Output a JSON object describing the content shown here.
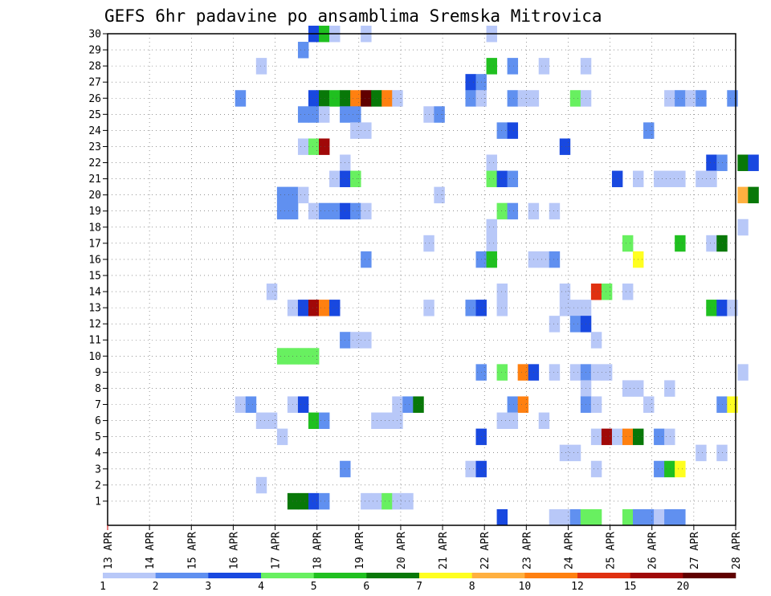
{
  "chart_data": {
    "type": "heatmap",
    "title": "GEFS 6hr padavine po ansamblima Sremska Mitrovica",
    "xlabel": "",
    "ylabel": "",
    "x_tick_labels": [
      "13 APR",
      "14 APR",
      "15 APR",
      "16 APR",
      "17 APR",
      "18 APR",
      "19 APR",
      "20 APR",
      "21 APR",
      "22 APR",
      "23 APR",
      "24 APR",
      "25 APR",
      "26 APR",
      "27 APR",
      "28 APR"
    ],
    "x_range_days": [
      13,
      28
    ],
    "y_tick_labels": [
      "1",
      "2",
      "3",
      "4",
      "5",
      "6",
      "7",
      "8",
      "9",
      "10",
      "11",
      "12",
      "13",
      "14",
      "15",
      "16",
      "17",
      "18",
      "19",
      "20",
      "21",
      "22",
      "23",
      "24",
      "25",
      "26",
      "27",
      "28",
      "29",
      "30"
    ],
    "y_range": [
      0,
      30
    ],
    "grid": true,
    "colorbar": {
      "labels": [
        "1",
        "2",
        "3",
        "4",
        "5",
        "6",
        "7",
        "8",
        "10",
        "12",
        "15",
        "20"
      ],
      "colors": [
        "#b8c8f8",
        "#6090f0",
        "#1848e0",
        "#68f060",
        "#20c020",
        "#087808",
        "#ffff20",
        "#ffb040",
        "#ff8010",
        "#e03010",
        "#a00808",
        "#600000"
      ]
    },
    "cells": [
      {
        "d": 17.92,
        "m": 30,
        "c": 3
      },
      {
        "d": 18.17,
        "m": 30,
        "c": 5
      },
      {
        "d": 18.42,
        "m": 30,
        "c": 1
      },
      {
        "d": 19.17,
        "m": 30,
        "c": 1
      },
      {
        "d": 22.17,
        "m": 30,
        "c": 1
      },
      {
        "d": 17.67,
        "m": 29,
        "c": 2
      },
      {
        "d": 16.67,
        "m": 28,
        "c": 1
      },
      {
        "d": 22.17,
        "m": 28,
        "c": 5
      },
      {
        "d": 22.67,
        "m": 28,
        "c": 2
      },
      {
        "d": 23.42,
        "m": 28,
        "c": 1
      },
      {
        "d": 24.42,
        "m": 28,
        "c": 1
      },
      {
        "d": 21.67,
        "m": 27,
        "c": 3
      },
      {
        "d": 21.92,
        "m": 27,
        "c": 2
      },
      {
        "d": 16.17,
        "m": 26,
        "c": 2
      },
      {
        "d": 17.92,
        "m": 26,
        "c": 3
      },
      {
        "d": 18.17,
        "m": 26,
        "c": 6
      },
      {
        "d": 18.42,
        "m": 26,
        "c": 5
      },
      {
        "d": 18.67,
        "m": 26,
        "c": 6
      },
      {
        "d": 18.92,
        "m": 26,
        "c": 9
      },
      {
        "d": 19.17,
        "m": 26,
        "c": 12
      },
      {
        "d": 19.42,
        "m": 26,
        "c": 6
      },
      {
        "d": 19.67,
        "m": 26,
        "c": 9
      },
      {
        "d": 19.92,
        "m": 26,
        "c": 1
      },
      {
        "d": 21.67,
        "m": 26,
        "c": 2
      },
      {
        "d": 21.92,
        "m": 26,
        "c": 1
      },
      {
        "d": 22.67,
        "m": 26,
        "c": 2
      },
      {
        "d": 22.92,
        "m": 26,
        "c": 1
      },
      {
        "d": 23.17,
        "m": 26,
        "c": 1
      },
      {
        "d": 24.17,
        "m": 26,
        "c": 4
      },
      {
        "d": 24.42,
        "m": 26,
        "c": 1
      },
      {
        "d": 26.42,
        "m": 26,
        "c": 1
      },
      {
        "d": 26.67,
        "m": 26,
        "c": 2
      },
      {
        "d": 26.92,
        "m": 26,
        "c": 1
      },
      {
        "d": 27.17,
        "m": 26,
        "c": 2
      },
      {
        "d": 27.92,
        "m": 26,
        "c": 2
      },
      {
        "d": 17.67,
        "m": 25,
        "c": 2
      },
      {
        "d": 17.92,
        "m": 25,
        "c": 2
      },
      {
        "d": 18.17,
        "m": 25,
        "c": 1
      },
      {
        "d": 18.67,
        "m": 25,
        "c": 2
      },
      {
        "d": 18.92,
        "m": 25,
        "c": 2
      },
      {
        "d": 20.67,
        "m": 25,
        "c": 1
      },
      {
        "d": 20.92,
        "m": 25,
        "c": 2
      },
      {
        "d": 18.92,
        "m": 24,
        "c": 1
      },
      {
        "d": 19.17,
        "m": 24,
        "c": 1
      },
      {
        "d": 22.42,
        "m": 24,
        "c": 2
      },
      {
        "d": 22.67,
        "m": 24,
        "c": 3
      },
      {
        "d": 25.92,
        "m": 24,
        "c": 2
      },
      {
        "d": 17.67,
        "m": 23,
        "c": 1
      },
      {
        "d": 17.92,
        "m": 23,
        "c": 4
      },
      {
        "d": 18.17,
        "m": 23,
        "c": 11
      },
      {
        "d": 23.92,
        "m": 23,
        "c": 3
      },
      {
        "d": 18.67,
        "m": 22,
        "c": 1
      },
      {
        "d": 22.17,
        "m": 22,
        "c": 1
      },
      {
        "d": 27.42,
        "m": 22,
        "c": 3
      },
      {
        "d": 27.67,
        "m": 22,
        "c": 2
      },
      {
        "d": 28.17,
        "m": 22,
        "c": 6
      },
      {
        "d": 28.42,
        "m": 22,
        "c": 3
      },
      {
        "d": 18.42,
        "m": 21,
        "c": 1
      },
      {
        "d": 18.67,
        "m": 21,
        "c": 3
      },
      {
        "d": 18.92,
        "m": 21,
        "c": 4
      },
      {
        "d": 22.17,
        "m": 21,
        "c": 4
      },
      {
        "d": 22.42,
        "m": 21,
        "c": 3
      },
      {
        "d": 22.67,
        "m": 21,
        "c": 2
      },
      {
        "d": 25.17,
        "m": 21,
        "c": 3
      },
      {
        "d": 25.67,
        "m": 21,
        "c": 1
      },
      {
        "d": 26.17,
        "m": 21,
        "c": 1
      },
      {
        "d": 26.42,
        "m": 21,
        "c": 1
      },
      {
        "d": 26.67,
        "m": 21,
        "c": 1
      },
      {
        "d": 27.17,
        "m": 21,
        "c": 1
      },
      {
        "d": 27.42,
        "m": 21,
        "c": 1
      },
      {
        "d": 17.17,
        "m": 20,
        "c": 2
      },
      {
        "d": 17.42,
        "m": 20,
        "c": 2
      },
      {
        "d": 17.67,
        "m": 20,
        "c": 1
      },
      {
        "d": 20.92,
        "m": 20,
        "c": 1
      },
      {
        "d": 28.17,
        "m": 20,
        "c": 8
      },
      {
        "d": 28.42,
        "m": 20,
        "c": 6
      },
      {
        "d": 17.17,
        "m": 19,
        "c": 2
      },
      {
        "d": 17.42,
        "m": 19,
        "c": 2
      },
      {
        "d": 17.92,
        "m": 19,
        "c": 1
      },
      {
        "d": 18.17,
        "m": 19,
        "c": 2
      },
      {
        "d": 18.42,
        "m": 19,
        "c": 2
      },
      {
        "d": 18.67,
        "m": 19,
        "c": 3
      },
      {
        "d": 18.92,
        "m": 19,
        "c": 2
      },
      {
        "d": 19.17,
        "m": 19,
        "c": 1
      },
      {
        "d": 22.42,
        "m": 19,
        "c": 4
      },
      {
        "d": 22.67,
        "m": 19,
        "c": 2
      },
      {
        "d": 23.17,
        "m": 19,
        "c": 1
      },
      {
        "d": 23.67,
        "m": 19,
        "c": 1
      },
      {
        "d": 22.17,
        "m": 18,
        "c": 1
      },
      {
        "d": 28.17,
        "m": 18,
        "c": 1
      },
      {
        "d": 20.67,
        "m": 17,
        "c": 1
      },
      {
        "d": 22.17,
        "m": 17,
        "c": 1
      },
      {
        "d": 25.42,
        "m": 17,
        "c": 4
      },
      {
        "d": 26.67,
        "m": 17,
        "c": 5
      },
      {
        "d": 27.42,
        "m": 17,
        "c": 1
      },
      {
        "d": 27.67,
        "m": 17,
        "c": 6
      },
      {
        "d": 19.17,
        "m": 16,
        "c": 2
      },
      {
        "d": 21.92,
        "m": 16,
        "c": 2
      },
      {
        "d": 22.17,
        "m": 16,
        "c": 5
      },
      {
        "d": 23.17,
        "m": 16,
        "c": 1
      },
      {
        "d": 23.42,
        "m": 16,
        "c": 1
      },
      {
        "d": 23.67,
        "m": 16,
        "c": 2
      },
      {
        "d": 25.67,
        "m": 16,
        "c": 7
      },
      {
        "d": 16.92,
        "m": 14,
        "c": 1
      },
      {
        "d": 22.42,
        "m": 14,
        "c": 1
      },
      {
        "d": 23.92,
        "m": 14,
        "c": 1
      },
      {
        "d": 24.67,
        "m": 14,
        "c": 10
      },
      {
        "d": 24.92,
        "m": 14,
        "c": 4
      },
      {
        "d": 25.42,
        "m": 14,
        "c": 1
      },
      {
        "d": 17.42,
        "m": 13,
        "c": 1
      },
      {
        "d": 17.67,
        "m": 13,
        "c": 3
      },
      {
        "d": 17.92,
        "m": 13,
        "c": 11
      },
      {
        "d": 18.17,
        "m": 13,
        "c": 9
      },
      {
        "d": 18.42,
        "m": 13,
        "c": 3
      },
      {
        "d": 20.67,
        "m": 13,
        "c": 1
      },
      {
        "d": 21.67,
        "m": 13,
        "c": 2
      },
      {
        "d": 21.92,
        "m": 13,
        "c": 3
      },
      {
        "d": 22.42,
        "m": 13,
        "c": 1
      },
      {
        "d": 23.92,
        "m": 13,
        "c": 1
      },
      {
        "d": 24.17,
        "m": 13,
        "c": 1
      },
      {
        "d": 24.42,
        "m": 13,
        "c": 1
      },
      {
        "d": 27.42,
        "m": 13,
        "c": 5
      },
      {
        "d": 27.67,
        "m": 13,
        "c": 3
      },
      {
        "d": 27.92,
        "m": 13,
        "c": 1
      },
      {
        "d": 23.67,
        "m": 12,
        "c": 1
      },
      {
        "d": 24.17,
        "m": 12,
        "c": 2
      },
      {
        "d": 24.42,
        "m": 12,
        "c": 3
      },
      {
        "d": 18.67,
        "m": 11,
        "c": 2
      },
      {
        "d": 18.92,
        "m": 11,
        "c": 1
      },
      {
        "d": 19.17,
        "m": 11,
        "c": 1
      },
      {
        "d": 24.67,
        "m": 11,
        "c": 1
      },
      {
        "d": 17.17,
        "m": 10,
        "c": 4
      },
      {
        "d": 17.42,
        "m": 10,
        "c": 4
      },
      {
        "d": 17.67,
        "m": 10,
        "c": 4
      },
      {
        "d": 17.92,
        "m": 10,
        "c": 4
      },
      {
        "d": 21.92,
        "m": 9,
        "c": 2
      },
      {
        "d": 22.42,
        "m": 9,
        "c": 4
      },
      {
        "d": 22.92,
        "m": 9,
        "c": 9
      },
      {
        "d": 23.17,
        "m": 9,
        "c": 3
      },
      {
        "d": 23.67,
        "m": 9,
        "c": 1
      },
      {
        "d": 24.17,
        "m": 9,
        "c": 1
      },
      {
        "d": 24.42,
        "m": 9,
        "c": 2
      },
      {
        "d": 24.67,
        "m": 9,
        "c": 1
      },
      {
        "d": 24.92,
        "m": 9,
        "c": 1
      },
      {
        "d": 28.17,
        "m": 9,
        "c": 1
      },
      {
        "d": 24.42,
        "m": 8,
        "c": 1
      },
      {
        "d": 25.42,
        "m": 8,
        "c": 1
      },
      {
        "d": 25.67,
        "m": 8,
        "c": 1
      },
      {
        "d": 26.42,
        "m": 8,
        "c": 1
      },
      {
        "d": 16.17,
        "m": 7,
        "c": 1
      },
      {
        "d": 16.42,
        "m": 7,
        "c": 2
      },
      {
        "d": 17.42,
        "m": 7,
        "c": 1
      },
      {
        "d": 17.67,
        "m": 7,
        "c": 3
      },
      {
        "d": 19.92,
        "m": 7,
        "c": 1
      },
      {
        "d": 20.17,
        "m": 7,
        "c": 2
      },
      {
        "d": 20.42,
        "m": 7,
        "c": 6
      },
      {
        "d": 22.67,
        "m": 7,
        "c": 2
      },
      {
        "d": 22.92,
        "m": 7,
        "c": 9
      },
      {
        "d": 24.42,
        "m": 7,
        "c": 2
      },
      {
        "d": 24.67,
        "m": 7,
        "c": 1
      },
      {
        "d": 25.92,
        "m": 7,
        "c": 1
      },
      {
        "d": 27.67,
        "m": 7,
        "c": 2
      },
      {
        "d": 27.92,
        "m": 7,
        "c": 7
      },
      {
        "d": 16.67,
        "m": 6,
        "c": 1
      },
      {
        "d": 16.92,
        "m": 6,
        "c": 1
      },
      {
        "d": 17.92,
        "m": 6,
        "c": 5
      },
      {
        "d": 18.17,
        "m": 6,
        "c": 2
      },
      {
        "d": 19.42,
        "m": 6,
        "c": 1
      },
      {
        "d": 19.67,
        "m": 6,
        "c": 1
      },
      {
        "d": 19.92,
        "m": 6,
        "c": 1
      },
      {
        "d": 22.42,
        "m": 6,
        "c": 1
      },
      {
        "d": 22.67,
        "m": 6,
        "c": 1
      },
      {
        "d": 23.42,
        "m": 6,
        "c": 1
      },
      {
        "d": 17.17,
        "m": 5,
        "c": 1
      },
      {
        "d": 21.92,
        "m": 5,
        "c": 3
      },
      {
        "d": 24.67,
        "m": 5,
        "c": 1
      },
      {
        "d": 24.92,
        "m": 5,
        "c": 11
      },
      {
        "d": 25.17,
        "m": 5,
        "c": 1
      },
      {
        "d": 25.42,
        "m": 5,
        "c": 9
      },
      {
        "d": 25.67,
        "m": 5,
        "c": 6
      },
      {
        "d": 26.17,
        "m": 5,
        "c": 2
      },
      {
        "d": 26.42,
        "m": 5,
        "c": 1
      },
      {
        "d": 23.92,
        "m": 4,
        "c": 1
      },
      {
        "d": 24.17,
        "m": 4,
        "c": 1
      },
      {
        "d": 27.17,
        "m": 4,
        "c": 1
      },
      {
        "d": 27.67,
        "m": 4,
        "c": 1
      },
      {
        "d": 18.67,
        "m": 3,
        "c": 2
      },
      {
        "d": 21.67,
        "m": 3,
        "c": 1
      },
      {
        "d": 21.92,
        "m": 3,
        "c": 3
      },
      {
        "d": 24.67,
        "m": 3,
        "c": 1
      },
      {
        "d": 26.17,
        "m": 3,
        "c": 2
      },
      {
        "d": 26.42,
        "m": 3,
        "c": 5
      },
      {
        "d": 26.67,
        "m": 3,
        "c": 7
      },
      {
        "d": 16.67,
        "m": 2,
        "c": 1
      },
      {
        "d": 17.42,
        "m": 1,
        "c": 6
      },
      {
        "d": 17.67,
        "m": 1,
        "c": 6
      },
      {
        "d": 17.92,
        "m": 1,
        "c": 3
      },
      {
        "d": 18.17,
        "m": 1,
        "c": 2
      },
      {
        "d": 19.17,
        "m": 1,
        "c": 1
      },
      {
        "d": 19.42,
        "m": 1,
        "c": 1
      },
      {
        "d": 19.67,
        "m": 1,
        "c": 4
      },
      {
        "d": 19.92,
        "m": 1,
        "c": 1
      },
      {
        "d": 20.17,
        "m": 1,
        "c": 1
      },
      {
        "d": 22.42,
        "m": 0,
        "c": 3
      },
      {
        "d": 23.67,
        "m": 0,
        "c": 1
      },
      {
        "d": 23.92,
        "m": 0,
        "c": 1
      },
      {
        "d": 24.17,
        "m": 0,
        "c": 2
      },
      {
        "d": 24.42,
        "m": 0,
        "c": 4
      },
      {
        "d": 24.67,
        "m": 0,
        "c": 4
      },
      {
        "d": 25.42,
        "m": 0,
        "c": 4
      },
      {
        "d": 25.67,
        "m": 0,
        "c": 2
      },
      {
        "d": 25.92,
        "m": 0,
        "c": 2
      },
      {
        "d": 26.17,
        "m": 0,
        "c": 1
      },
      {
        "d": 26.42,
        "m": 0,
        "c": 2
      },
      {
        "d": 26.67,
        "m": 0,
        "c": 2
      }
    ]
  }
}
